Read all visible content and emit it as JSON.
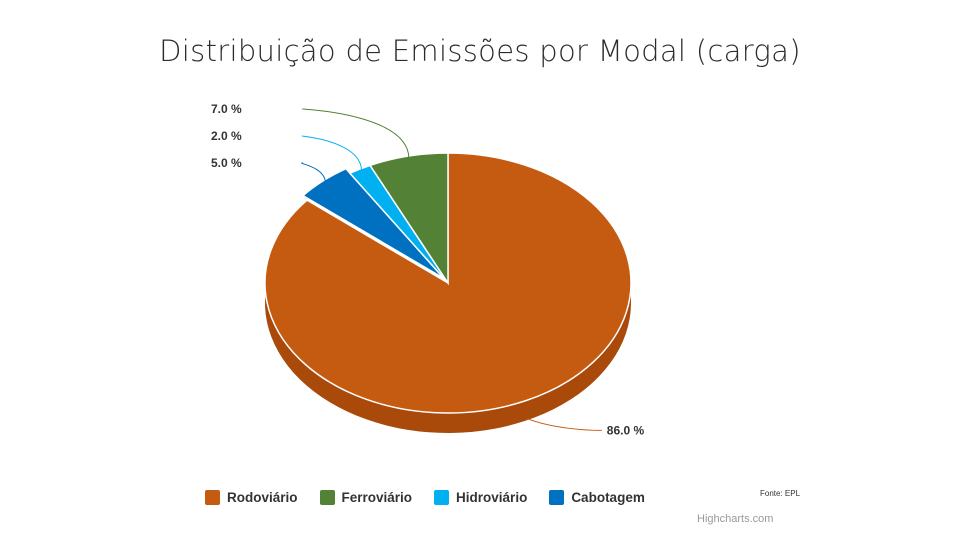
{
  "title": "Distribuição de Emissões por Modal (carga)",
  "source_note": "Fonte: EPL",
  "credits": "Highcharts.com",
  "chart_data": {
    "type": "pie",
    "title": "Distribuição de Emissões por Modal (carga)",
    "categories": [
      "Rodoviário",
      "Ferroviário",
      "Hidroviário",
      "Cabotagem"
    ],
    "values": [
      86.0,
      7.0,
      2.0,
      5.0
    ],
    "data_labels": [
      "86.0 %",
      "7.0 %",
      "2.0 %",
      "5.0 %"
    ],
    "colors": [
      "#c55a11",
      "#538135",
      "#00b0f0",
      "#0070c0"
    ],
    "side_colors": [
      "#a94a0b",
      "#3f6828",
      "#0090c8",
      "#0058a0"
    ],
    "sliced": "Cabotagem",
    "three_d": true,
    "legend_position": "bottom"
  },
  "legend": {
    "items": [
      {
        "label": "Rodoviário",
        "color": "#c55a11"
      },
      {
        "label": "Ferroviário",
        "color": "#538135"
      },
      {
        "label": "Hidroviário",
        "color": "#00b0f0"
      },
      {
        "label": "Cabotagem",
        "color": "#0070c0"
      }
    ]
  }
}
